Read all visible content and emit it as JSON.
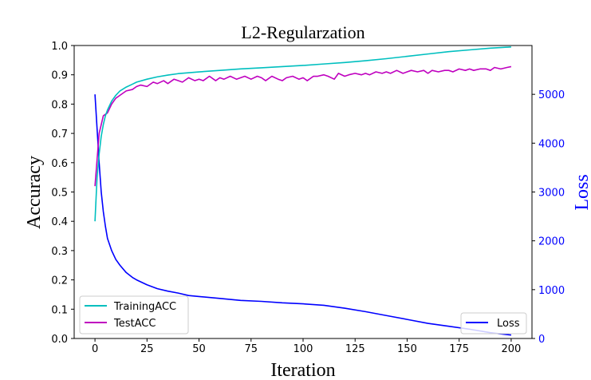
{
  "chart_data": {
    "type": "line",
    "title": "L2-Regularzation",
    "xlabel": "Iteration",
    "ylabel": "Accuracy",
    "ylabel_right": "Loss",
    "xlim": [
      -10,
      210
    ],
    "ylim": [
      0,
      1.0
    ],
    "ylim_right": [
      0,
      6000
    ],
    "x_ticks": [
      "0",
      "25",
      "50",
      "75",
      "100",
      "125",
      "150",
      "175",
      "200"
    ],
    "y_ticks": [
      "0.0",
      "0.1",
      "0.2",
      "0.3",
      "0.4",
      "0.5",
      "0.6",
      "0.7",
      "0.8",
      "0.9",
      "1.0"
    ],
    "y_ticks_right": [
      "0",
      "1000",
      "2000",
      "3000",
      "4000",
      "5000"
    ],
    "grid": false,
    "colors": {
      "training": "#00bfbf",
      "test": "#bf00bf",
      "loss": "#0000ff",
      "right_axis": "#0000ff"
    },
    "legend_left": {
      "placement": "lower-left",
      "entries": [
        "TrainingACC",
        "TestACC"
      ]
    },
    "legend_right": {
      "placement": "lower-right",
      "entries": [
        "Loss"
      ]
    },
    "series": [
      {
        "name": "TrainingACC",
        "axis": "left",
        "x": [
          0,
          1,
          2,
          3,
          4,
          5,
          6,
          8,
          10,
          12,
          15,
          18,
          20,
          25,
          30,
          35,
          40,
          50,
          60,
          70,
          80,
          90,
          100,
          110,
          120,
          130,
          140,
          150,
          160,
          170,
          180,
          190,
          200
        ],
        "values": [
          0.4,
          0.55,
          0.63,
          0.69,
          0.73,
          0.76,
          0.78,
          0.81,
          0.83,
          0.845,
          0.858,
          0.868,
          0.875,
          0.885,
          0.893,
          0.899,
          0.904,
          0.91,
          0.915,
          0.92,
          0.924,
          0.928,
          0.932,
          0.937,
          0.942,
          0.948,
          0.955,
          0.963,
          0.971,
          0.979,
          0.985,
          0.991,
          0.995
        ]
      },
      {
        "name": "TestACC",
        "axis": "left",
        "x": [
          0,
          2,
          4,
          6,
          8,
          10,
          12,
          15,
          18,
          20,
          22,
          25,
          28,
          30,
          33,
          35,
          38,
          40,
          42,
          45,
          48,
          50,
          52,
          55,
          58,
          60,
          62,
          65,
          68,
          70,
          72,
          75,
          78,
          80,
          82,
          85,
          88,
          90,
          92,
          95,
          98,
          100,
          102,
          105,
          107,
          110,
          112,
          115,
          117,
          120,
          122,
          125,
          128,
          130,
          132,
          135,
          138,
          140,
          142,
          145,
          148,
          150,
          152,
          155,
          158,
          160,
          162,
          165,
          168,
          170,
          172,
          175,
          178,
          180,
          182,
          185,
          188,
          190,
          192,
          195,
          198,
          200
        ],
        "values": [
          0.52,
          0.7,
          0.76,
          0.77,
          0.8,
          0.82,
          0.83,
          0.845,
          0.85,
          0.86,
          0.865,
          0.86,
          0.875,
          0.87,
          0.88,
          0.87,
          0.885,
          0.88,
          0.875,
          0.89,
          0.88,
          0.885,
          0.88,
          0.895,
          0.88,
          0.89,
          0.885,
          0.895,
          0.885,
          0.89,
          0.895,
          0.885,
          0.895,
          0.89,
          0.88,
          0.895,
          0.885,
          0.88,
          0.89,
          0.895,
          0.885,
          0.89,
          0.88,
          0.895,
          0.895,
          0.9,
          0.895,
          0.885,
          0.905,
          0.895,
          0.9,
          0.905,
          0.9,
          0.905,
          0.9,
          0.91,
          0.905,
          0.91,
          0.905,
          0.915,
          0.905,
          0.91,
          0.915,
          0.91,
          0.915,
          0.905,
          0.915,
          0.91,
          0.915,
          0.915,
          0.91,
          0.92,
          0.915,
          0.92,
          0.915,
          0.92,
          0.92,
          0.915,
          0.925,
          0.92,
          0.925,
          0.928
        ]
      },
      {
        "name": "Loss",
        "axis": "right",
        "x": [
          0,
          1,
          2,
          3,
          4,
          5,
          6,
          8,
          10,
          12,
          15,
          18,
          20,
          25,
          30,
          35,
          40,
          45,
          50,
          60,
          70,
          80,
          90,
          100,
          110,
          120,
          130,
          140,
          150,
          160,
          170,
          180,
          190,
          200
        ],
        "values": [
          5000,
          4300,
          3600,
          3000,
          2600,
          2300,
          2050,
          1800,
          1620,
          1500,
          1350,
          1250,
          1200,
          1100,
          1020,
          970,
          930,
          880,
          860,
          820,
          780,
          760,
          730,
          710,
          680,
          620,
          550,
          470,
          390,
          310,
          250,
          190,
          120,
          70
        ]
      }
    ]
  }
}
